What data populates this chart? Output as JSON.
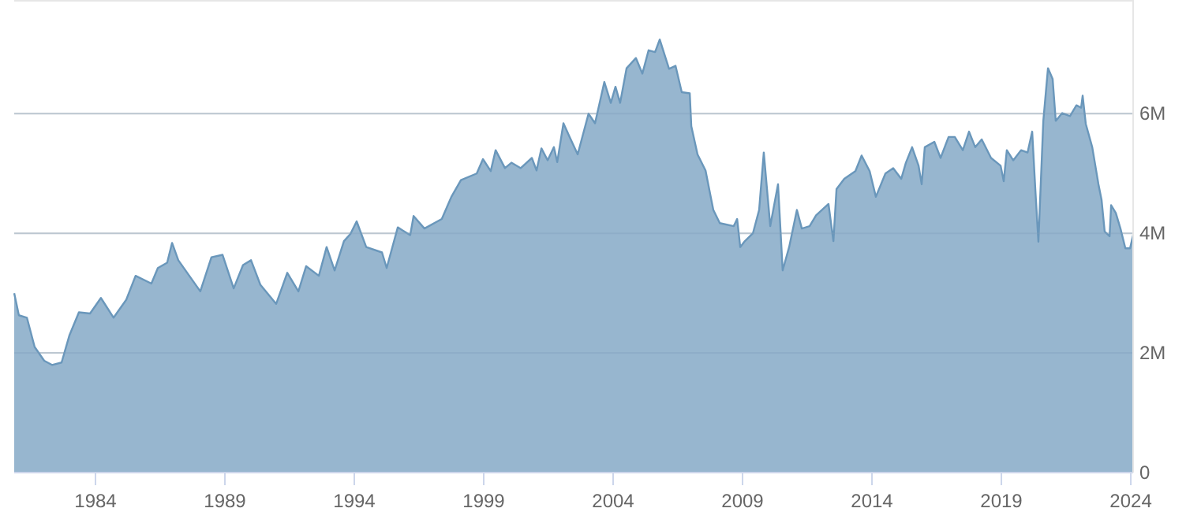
{
  "chart_data": {
    "type": "area",
    "grid": "y",
    "xlim": [
      1980.86,
      2024.09
    ],
    "xticks": [
      1984,
      1989,
      1994,
      1999,
      2004,
      2009,
      2014,
      2019,
      2024
    ],
    "ylim": [
      0,
      7900000
    ],
    "yticks": [
      0,
      {
        "value": 2000000,
        "label": "2M"
      },
      {
        "value": 4000000,
        "label": "4M"
      },
      {
        "value": 6000000,
        "label": "6M"
      }
    ],
    "series": [
      {
        "color": "#6a97bb",
        "x": [
          1980.86,
          1981.04,
          1981.35,
          1981.65,
          1982.02,
          1982.32,
          1982.69,
          1982.99,
          1983.36,
          1983.79,
          1984.21,
          1984.7,
          1985.19,
          1985.55,
          1986.16,
          1986.41,
          1986.77,
          1986.96,
          1987.2,
          1988.05,
          1988.48,
          1988.91,
          1989.34,
          1989.7,
          1990.01,
          1990.37,
          1990.98,
          1991.41,
          1991.84,
          1992.14,
          1992.63,
          1992.93,
          1993.24,
          1993.6,
          1993.85,
          1994.09,
          1994.46,
          1995.07,
          1995.25,
          1995.68,
          1996.16,
          1996.29,
          1996.71,
          1997.38,
          1997.75,
          1998.12,
          1998.73,
          1998.97,
          1999.27,
          1999.46,
          1999.82,
          2000.07,
          2000.43,
          2000.86,
          2001.04,
          2001.23,
          2001.47,
          2001.71,
          2001.84,
          2002.08,
          2002.32,
          2002.63,
          2003.05,
          2003.3,
          2003.66,
          2003.91,
          2004.09,
          2004.27,
          2004.52,
          2004.88,
          2005.13,
          2005.37,
          2005.62,
          2005.8,
          2006.16,
          2006.41,
          2006.65,
          2006.96,
          2007.02,
          2007.26,
          2007.57,
          2007.87,
          2008.12,
          2008.66,
          2008.79,
          2008.91,
          2009.09,
          2009.4,
          2009.64,
          2009.82,
          2010.07,
          2010.37,
          2010.55,
          2010.8,
          2011.1,
          2011.29,
          2011.59,
          2011.84,
          2012.32,
          2012.51,
          2012.63,
          2012.93,
          2013.36,
          2013.6,
          2013.91,
          2014.15,
          2014.52,
          2014.82,
          2015.13,
          2015.31,
          2015.55,
          2015.8,
          2015.92,
          2016.04,
          2016.41,
          2016.65,
          2016.96,
          2017.2,
          2017.51,
          2017.75,
          2017.99,
          2018.24,
          2018.6,
          2018.97,
          2019.09,
          2019.21,
          2019.46,
          2019.76,
          2020.01,
          2020.19,
          2020.31,
          2020.43,
          2020.62,
          2020.8,
          2020.98,
          2021.1,
          2021.35,
          2021.65,
          2021.9,
          2022.08,
          2022.14,
          2022.26,
          2022.51,
          2022.75,
          2022.87,
          2022.99,
          2023.18,
          2023.24,
          2023.42,
          2023.6,
          2023.79,
          2023.97,
          2024.09
        ],
        "values": [
          3000000,
          2630000,
          2590000,
          2100000,
          1870000,
          1800000,
          1840000,
          2290000,
          2680000,
          2660000,
          2920000,
          2590000,
          2890000,
          3290000,
          3160000,
          3420000,
          3510000,
          3840000,
          3550000,
          3030000,
          3600000,
          3640000,
          3080000,
          3470000,
          3550000,
          3140000,
          2820000,
          3340000,
          3030000,
          3450000,
          3290000,
          3770000,
          3380000,
          3870000,
          3990000,
          4200000,
          3770000,
          3680000,
          3420000,
          4100000,
          3970000,
          4290000,
          4080000,
          4240000,
          4610000,
          4890000,
          5000000,
          5240000,
          5040000,
          5390000,
          5090000,
          5180000,
          5090000,
          5260000,
          5050000,
          5420000,
          5220000,
          5440000,
          5190000,
          5840000,
          5610000,
          5320000,
          6000000,
          5840000,
          6530000,
          6180000,
          6450000,
          6180000,
          6760000,
          6930000,
          6670000,
          7060000,
          7030000,
          7240000,
          6750000,
          6800000,
          6360000,
          6340000,
          5790000,
          5320000,
          5050000,
          4390000,
          4170000,
          4120000,
          4240000,
          3770000,
          3870000,
          4000000,
          4390000,
          5350000,
          4120000,
          4820000,
          3380000,
          3770000,
          4390000,
          4080000,
          4120000,
          4300000,
          4490000,
          3870000,
          4740000,
          4910000,
          5040000,
          5300000,
          5040000,
          4610000,
          5000000,
          5090000,
          4910000,
          5180000,
          5440000,
          5130000,
          4820000,
          5440000,
          5530000,
          5260000,
          5610000,
          5610000,
          5390000,
          5700000,
          5440000,
          5570000,
          5260000,
          5130000,
          4870000,
          5390000,
          5220000,
          5390000,
          5350000,
          5700000,
          4740000,
          3860000,
          5880000,
          6760000,
          6580000,
          5880000,
          6010000,
          5960000,
          6140000,
          6100000,
          6300000,
          5830000,
          5440000,
          4820000,
          4560000,
          4030000,
          3950000,
          4470000,
          4340000,
          4080000,
          3750000,
          3750000,
          3970000
        ]
      }
    ]
  }
}
